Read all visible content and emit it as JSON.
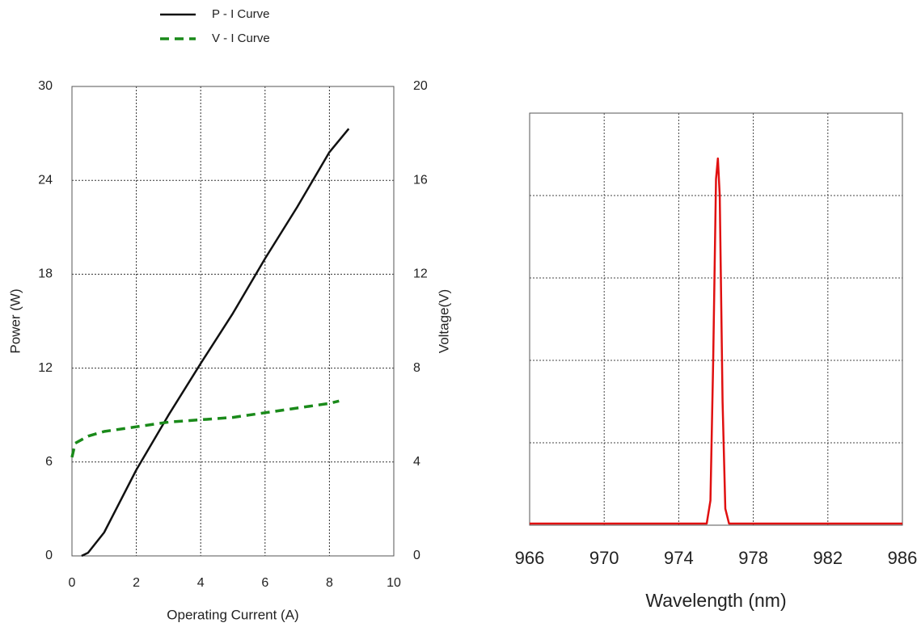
{
  "chart_data": [
    {
      "type": "line",
      "xlabel": "Operating Current (A)",
      "ylabel": "Power (W)",
      "y2label": "Voltage(V)",
      "xlim": [
        0,
        10
      ],
      "xticks": [
        0,
        2,
        4,
        6,
        8,
        10
      ],
      "ylim": [
        0,
        30
      ],
      "yticks": [
        0,
        6,
        12,
        18,
        24,
        30
      ],
      "y2lim": [
        0,
        20
      ],
      "y2ticks": [
        0,
        4,
        8,
        12,
        16,
        20
      ],
      "grid": true,
      "legend": "top",
      "series": [
        {
          "name": "P - I Curve",
          "color": "#111111",
          "line_style": "solid",
          "x": [
            0.3,
            0.5,
            1,
            2,
            3,
            4,
            5,
            6,
            7,
            8,
            8.6
          ],
          "values": [
            0,
            0.2,
            1.5,
            5.5,
            9,
            12.3,
            15.5,
            19,
            22.3,
            25.8,
            27.3
          ]
        },
        {
          "name": "V - I Curve",
          "color": "#1a8a1a",
          "line_style": "dashed",
          "axis": "y2",
          "x": [
            0,
            0.1,
            0.5,
            1,
            2,
            3,
            4,
            5,
            6,
            7,
            8,
            8.3
          ],
          "values": [
            4.2,
            4.8,
            5.1,
            5.3,
            5.5,
            5.7,
            5.8,
            5.9,
            6.1,
            6.3,
            6.5,
            6.6
          ]
        }
      ]
    },
    {
      "type": "line",
      "xlabel": "Wavelength (nm)",
      "xlim": [
        966,
        986
      ],
      "xticks": [
        966,
        970,
        974,
        978,
        982,
        986
      ],
      "ylim": [
        0,
        5
      ],
      "ygrid_lines": [
        1,
        2,
        3,
        4
      ],
      "grid": true,
      "color": "#e01010",
      "line_style": "solid",
      "x": [
        966,
        975.5,
        975.7,
        975.85,
        976.0,
        976.1,
        976.2,
        976.35,
        976.5,
        976.7,
        986
      ],
      "values": [
        0.02,
        0.02,
        0.3,
        2,
        4.2,
        4.45,
        4.0,
        1.5,
        0.2,
        0.02,
        0.02
      ]
    }
  ]
}
